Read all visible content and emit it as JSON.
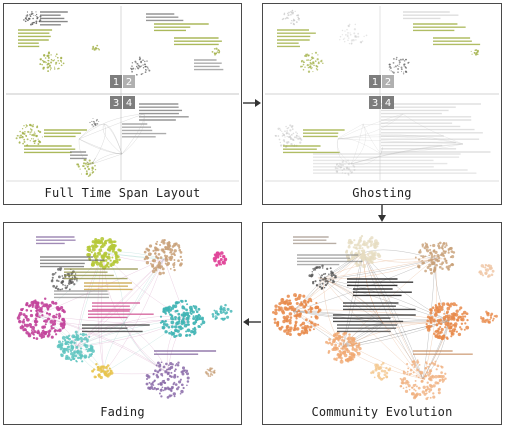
{
  "panels": {
    "full_time_span": {
      "caption": "Full Time Span Layout",
      "quadrants": [
        "1",
        "2",
        "3",
        "4"
      ]
    },
    "ghosting": {
      "caption": "Ghosting",
      "quadrants": [
        "1",
        "2",
        "3",
        "4"
      ]
    },
    "community_evolution": {
      "caption": "Community Evolution"
    },
    "fading": {
      "caption": "Fading"
    }
  },
  "colors": {
    "border": "#4a4a4a",
    "node_olive": "#a3b24a",
    "node_gray": "#c8c8c8",
    "node_orange": "#e8894a",
    "node_teal": "#3fb4b4",
    "node_magenta": "#c2439a",
    "node_lime": "#b6c93a",
    "node_pink": "#e0479a",
    "node_purple": "#8a6aa8",
    "node_tan": "#c8a078",
    "node_dark": "#555555"
  }
}
